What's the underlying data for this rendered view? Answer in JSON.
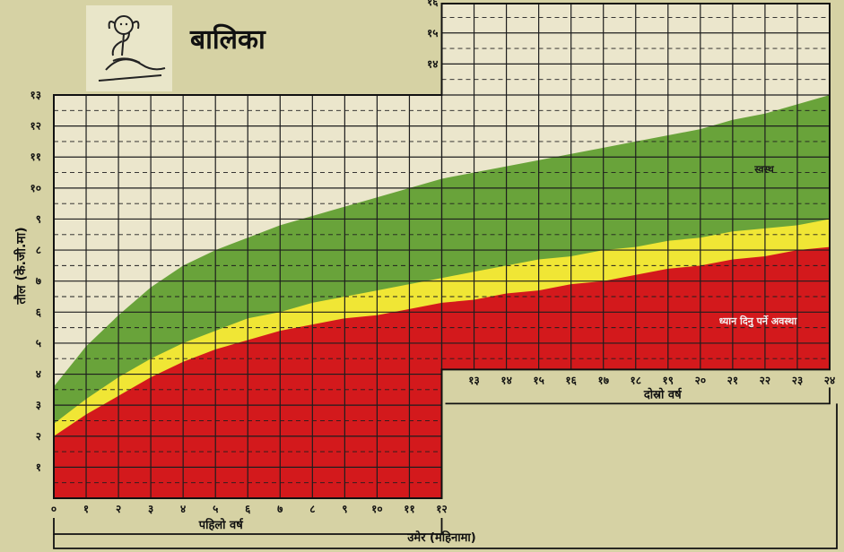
{
  "title": "बालिका",
  "colors": {
    "background": "#d6d2a4",
    "healthy": "#69a33a",
    "caution": "#f0e635",
    "danger": "#d3191c",
    "grid": "#1e1e1e"
  },
  "labels": {
    "healthy_zone": "स्वस्थ",
    "danger_zone": "ध्यान दिनु पर्ने अवस्था",
    "first_year": "पहिलो वर्ष",
    "second_year": "दोस्रो वर्ष",
    "x_axis": "उमेर (महिनामा)",
    "y_axis": "तौल (के.जी.मा)"
  },
  "chart_data": {
    "type": "area",
    "title": "बालिका",
    "xlabel": "उमेर (महिनामा)",
    "ylabel": "तौल (के.जी.मा)",
    "xlim": [
      0,
      24
    ],
    "ylim": [
      0,
      16
    ],
    "x_ticks_first_year": [
      "०",
      "१",
      "२",
      "३",
      "४",
      "५",
      "६",
      "७",
      "८",
      "९",
      "१०",
      "११",
      "१२"
    ],
    "x_ticks_second_year": [
      "१३",
      "१४",
      "१५",
      "१६",
      "१७",
      "१८",
      "१९",
      "२०",
      "२१",
      "२२",
      "२३",
      "२४"
    ],
    "y_ticks_left": [
      "१",
      "२",
      "३",
      "४",
      "५",
      "६",
      "७",
      "८",
      "९",
      "१०",
      "११",
      "१२",
      "१३"
    ],
    "y_ticks_right": [
      "१४",
      "१५",
      "१६"
    ],
    "y_tick_values_left": [
      1,
      2,
      3,
      4,
      5,
      6,
      7,
      8,
      9,
      10,
      11,
      12,
      13
    ],
    "y_tick_values_right": [
      14,
      15,
      16
    ],
    "grid": true,
    "x": [
      0,
      1,
      2,
      3,
      4,
      5,
      6,
      7,
      8,
      9,
      10,
      11,
      12,
      13,
      14,
      15,
      16,
      17,
      18,
      19,
      20,
      21,
      22,
      23,
      24
    ],
    "series": [
      {
        "name": "स्वस्थ",
        "color": "#69a33a",
        "values": [
          3.6,
          4.9,
          5.9,
          6.8,
          7.5,
          8.0,
          8.4,
          8.8,
          9.1,
          9.4,
          9.7,
          10.0,
          10.3,
          10.5,
          10.7,
          10.9,
          11.1,
          11.3,
          11.5,
          11.7,
          11.9,
          12.2,
          12.4,
          12.7,
          13.0
        ]
      },
      {
        "name": "",
        "color": "#f0e635",
        "values": [
          2.4,
          3.2,
          3.9,
          4.5,
          5.0,
          5.4,
          5.8,
          6.0,
          6.3,
          6.5,
          6.7,
          6.9,
          7.1,
          7.3,
          7.5,
          7.7,
          7.8,
          8.0,
          8.1,
          8.3,
          8.4,
          8.6,
          8.7,
          8.8,
          9.0
        ]
      },
      {
        "name": "ध्यान दिनु पर्ने अवस्था",
        "color": "#d3191c",
        "values": [
          2.0,
          2.7,
          3.3,
          3.9,
          4.4,
          4.8,
          5.1,
          5.4,
          5.6,
          5.8,
          5.9,
          6.1,
          6.3,
          6.4,
          6.6,
          6.7,
          6.9,
          7.0,
          7.2,
          7.4,
          7.5,
          7.7,
          7.8,
          8.0,
          8.1
        ]
      }
    ]
  }
}
